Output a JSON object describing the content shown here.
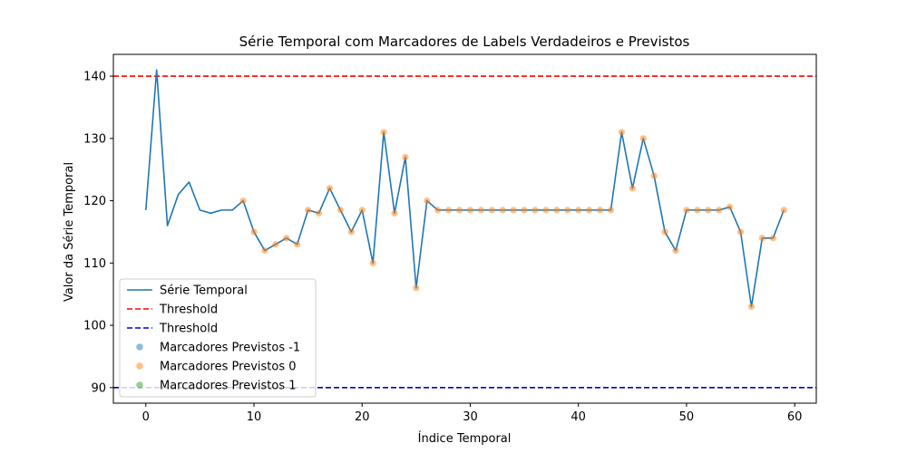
{
  "chart_data": {
    "type": "line",
    "title": "Série Temporal com Marcadores de Labels Verdadeiros e Previstos",
    "xlabel": "Índice Temporal",
    "ylabel": "Valor da Série Temporal",
    "xlim": [
      -3,
      62
    ],
    "ylim": [
      87.5,
      143.5
    ],
    "xticks": [
      0,
      10,
      20,
      30,
      40,
      50,
      60
    ],
    "yticks": [
      90,
      100,
      110,
      120,
      130,
      140
    ],
    "legend_position": "lower-left",
    "grid": false,
    "series": [
      {
        "name": "Série Temporal",
        "color": "#1f77b4",
        "x": [
          0,
          1,
          2,
          3,
          4,
          5,
          6,
          7,
          8,
          9,
          10,
          11,
          12,
          13,
          14,
          15,
          16,
          17,
          18,
          19,
          20,
          21,
          22,
          23,
          24,
          25,
          26,
          27,
          28,
          29,
          30,
          31,
          32,
          33,
          34,
          35,
          36,
          37,
          38,
          39,
          40,
          41,
          42,
          43,
          44,
          45,
          46,
          47,
          48,
          49,
          50,
          51,
          52,
          53,
          54,
          55,
          56,
          57,
          58,
          59
        ],
        "y": [
          118.5,
          141,
          116,
          121,
          123,
          118.5,
          118,
          118.5,
          118.5,
          120,
          115,
          112,
          113,
          114,
          113,
          118.5,
          118,
          122,
          118.5,
          115,
          118.5,
          110,
          131,
          118,
          127,
          106,
          120,
          118.5,
          118.5,
          118.5,
          118.5,
          118.5,
          118.5,
          118.5,
          118.5,
          118.5,
          118.5,
          118.5,
          118.5,
          118.5,
          118.5,
          118.5,
          118.5,
          118.5,
          131,
          122,
          130,
          124,
          115,
          112,
          118.5,
          118.5,
          118.5,
          118.5,
          119,
          115,
          103,
          114,
          114,
          118.5
        ]
      }
    ],
    "thresholds": [
      {
        "name": "Threshold",
        "value": 140,
        "color": "#ff0000"
      },
      {
        "name": "Threshold",
        "value": 90,
        "color": "#0000cd"
      }
    ],
    "markers": [
      {
        "name": "Marcadores Previstos -1",
        "color": "#1f77b4",
        "x": []
      },
      {
        "name": "Marcadores Previstos 0",
        "color": "#ff7f0e",
        "x": [
          9,
          10,
          11,
          12,
          13,
          14,
          15,
          16,
          17,
          18,
          19,
          20,
          21,
          22,
          23,
          24,
          25,
          26,
          27,
          28,
          29,
          30,
          31,
          32,
          33,
          34,
          35,
          36,
          37,
          38,
          39,
          40,
          41,
          42,
          43,
          44,
          45,
          46,
          47,
          48,
          49,
          50,
          51,
          52,
          53,
          54,
          55,
          56,
          57,
          58,
          59
        ]
      },
      {
        "name": "Marcadores Previstos 1",
        "color": "#2ca02c",
        "x": []
      }
    ]
  }
}
